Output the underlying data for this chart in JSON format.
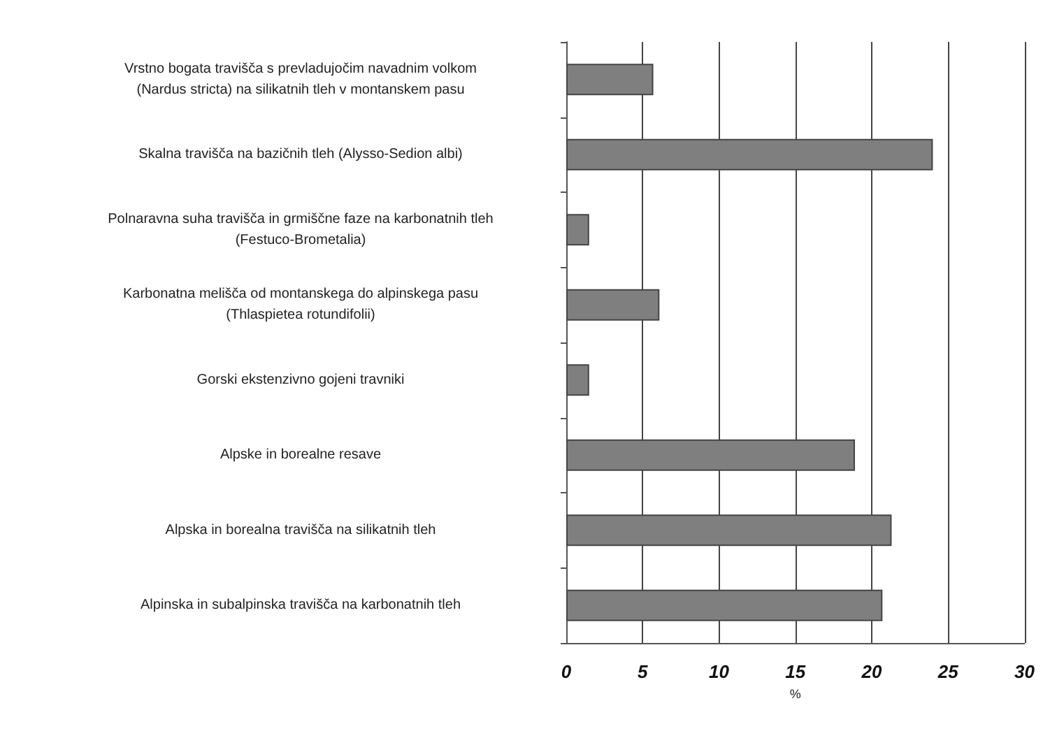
{
  "chart_data": {
    "type": "bar",
    "orientation": "horizontal",
    "xlabel": "%",
    "categories": [
      "Vrstno bogata travišča s prevladujočim navadnim volkom\n(Nardus stricta) na silikatnih tleh v montanskem pasu",
      "Skalna travišča na bazičnih tleh (Alysso-Sedion albi)",
      "Polnaravna suha travišča in grmiščne faze na karbonatnih tleh\n(Festuco-Brometalia)",
      "Karbonatna melišča od montanskega do alpinskega pasu\n(Thlaspietea rotundifolii)",
      "Gorski ekstenzivno gojeni travniki",
      "Alpske in borealne resave",
      "Alpska in borealna travišča na silikatnih tleh",
      "Alpinska in subalpinska travišča na karbonatnih tleh"
    ],
    "values": [
      5.7,
      24.0,
      1.5,
      6.1,
      1.5,
      18.9,
      21.3,
      20.7
    ],
    "color": "#7f7f7f",
    "xlim": [
      0,
      30
    ],
    "xticks": [
      0,
      5,
      10,
      15,
      20,
      25,
      30
    ],
    "grid": "x"
  }
}
